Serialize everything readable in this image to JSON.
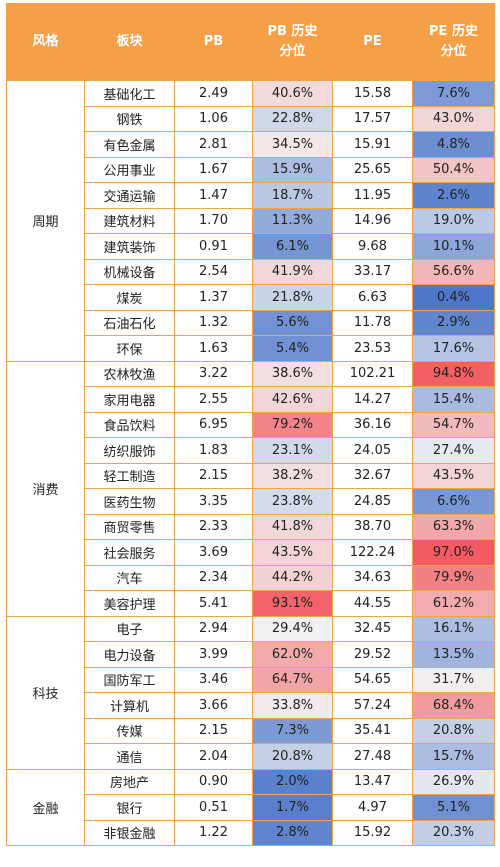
{
  "header": {
    "style": "风格",
    "sector": "板块",
    "pb": "PB",
    "pb_pct_line1": "PB 历史",
    "pb_pct_line2": "分位",
    "pe": "PE",
    "pe_pct_line1": "PE 历史",
    "pe_pct_line2": "分位"
  },
  "groups": [
    {
      "name": "周期",
      "rows": [
        {
          "sector": "基础化工",
          "pb": "2.49",
          "pb_pct": "40.6%",
          "pe": "15.58",
          "pe_pct": "7.6%"
        },
        {
          "sector": "钢铁",
          "pb": "1.06",
          "pb_pct": "22.8%",
          "pe": "17.57",
          "pe_pct": "43.0%"
        },
        {
          "sector": "有色金属",
          "pb": "2.81",
          "pb_pct": "34.5%",
          "pe": "15.91",
          "pe_pct": "4.8%"
        },
        {
          "sector": "公用事业",
          "pb": "1.67",
          "pb_pct": "15.9%",
          "pe": "25.65",
          "pe_pct": "50.4%"
        },
        {
          "sector": "交通运输",
          "pb": "1.47",
          "pb_pct": "18.7%",
          "pe": "11.95",
          "pe_pct": "2.6%"
        },
        {
          "sector": "建筑材料",
          "pb": "1.70",
          "pb_pct": "11.3%",
          "pe": "14.96",
          "pe_pct": "19.0%"
        },
        {
          "sector": "建筑装饰",
          "pb": "0.91",
          "pb_pct": "6.1%",
          "pe": "9.68",
          "pe_pct": "10.1%"
        },
        {
          "sector": "机械设备",
          "pb": "2.54",
          "pb_pct": "41.9%",
          "pe": "33.17",
          "pe_pct": "56.6%"
        },
        {
          "sector": "煤炭",
          "pb": "1.37",
          "pb_pct": "21.8%",
          "pe": "6.63",
          "pe_pct": "0.4%"
        },
        {
          "sector": "石油石化",
          "pb": "1.32",
          "pb_pct": "5.6%",
          "pe": "11.78",
          "pe_pct": "2.9%"
        },
        {
          "sector": "环保",
          "pb": "1.63",
          "pb_pct": "5.4%",
          "pe": "23.53",
          "pe_pct": "17.6%"
        }
      ]
    },
    {
      "name": "消费",
      "rows": [
        {
          "sector": "农林牧渔",
          "pb": "3.22",
          "pb_pct": "38.6%",
          "pe": "102.21",
          "pe_pct": "94.8%"
        },
        {
          "sector": "家用电器",
          "pb": "2.55",
          "pb_pct": "42.6%",
          "pe": "14.27",
          "pe_pct": "15.4%"
        },
        {
          "sector": "食品饮料",
          "pb": "6.95",
          "pb_pct": "79.2%",
          "pe": "36.16",
          "pe_pct": "54.7%"
        },
        {
          "sector": "纺织服饰",
          "pb": "1.83",
          "pb_pct": "23.1%",
          "pe": "24.05",
          "pe_pct": "27.4%"
        },
        {
          "sector": "轻工制造",
          "pb": "2.15",
          "pb_pct": "38.2%",
          "pe": "32.67",
          "pe_pct": "43.5%"
        },
        {
          "sector": "医药生物",
          "pb": "3.35",
          "pb_pct": "23.8%",
          "pe": "24.85",
          "pe_pct": "6.6%"
        },
        {
          "sector": "商贸零售",
          "pb": "2.33",
          "pb_pct": "41.8%",
          "pe": "38.70",
          "pe_pct": "63.3%"
        },
        {
          "sector": "社会服务",
          "pb": "3.69",
          "pb_pct": "43.5%",
          "pe": "122.24",
          "pe_pct": "97.0%"
        },
        {
          "sector": "汽车",
          "pb": "2.34",
          "pb_pct": "44.2%",
          "pe": "34.63",
          "pe_pct": "79.9%"
        },
        {
          "sector": "美容护理",
          "pb": "5.41",
          "pb_pct": "93.1%",
          "pe": "44.55",
          "pe_pct": "61.2%"
        }
      ]
    },
    {
      "name": "科技",
      "rows": [
        {
          "sector": "电子",
          "pb": "2.94",
          "pb_pct": "29.4%",
          "pe": "32.45",
          "pe_pct": "16.1%"
        },
        {
          "sector": "电力设备",
          "pb": "3.99",
          "pb_pct": "62.0%",
          "pe": "29.52",
          "pe_pct": "13.5%"
        },
        {
          "sector": "国防军工",
          "pb": "3.46",
          "pb_pct": "64.7%",
          "pe": "54.65",
          "pe_pct": "31.7%"
        },
        {
          "sector": "计算机",
          "pb": "3.66",
          "pb_pct": "33.8%",
          "pe": "57.24",
          "pe_pct": "68.4%"
        },
        {
          "sector": "传媒",
          "pb": "2.15",
          "pb_pct": "7.3%",
          "pe": "35.41",
          "pe_pct": "20.8%"
        },
        {
          "sector": "通信",
          "pb": "2.04",
          "pb_pct": "20.8%",
          "pe": "27.48",
          "pe_pct": "15.7%"
        }
      ]
    },
    {
      "name": "金融",
      "rows": [
        {
          "sector": "房地产",
          "pb": "0.90",
          "pb_pct": "2.0%",
          "pe": "13.47",
          "pe_pct": "26.9%"
        },
        {
          "sector": "银行",
          "pb": "0.51",
          "pb_pct": "1.7%",
          "pe": "4.97",
          "pe_pct": "5.1%"
        },
        {
          "sector": "非银金融",
          "pb": "1.22",
          "pb_pct": "2.8%",
          "pe": "15.92",
          "pe_pct": "20.3%"
        }
      ]
    }
  ],
  "colors": {
    "header_bg": "#F5A046",
    "grid": "#F0A24C",
    "low": "#4A74C9",
    "mid": "#F2F2F2",
    "high": "#F2545B"
  }
}
